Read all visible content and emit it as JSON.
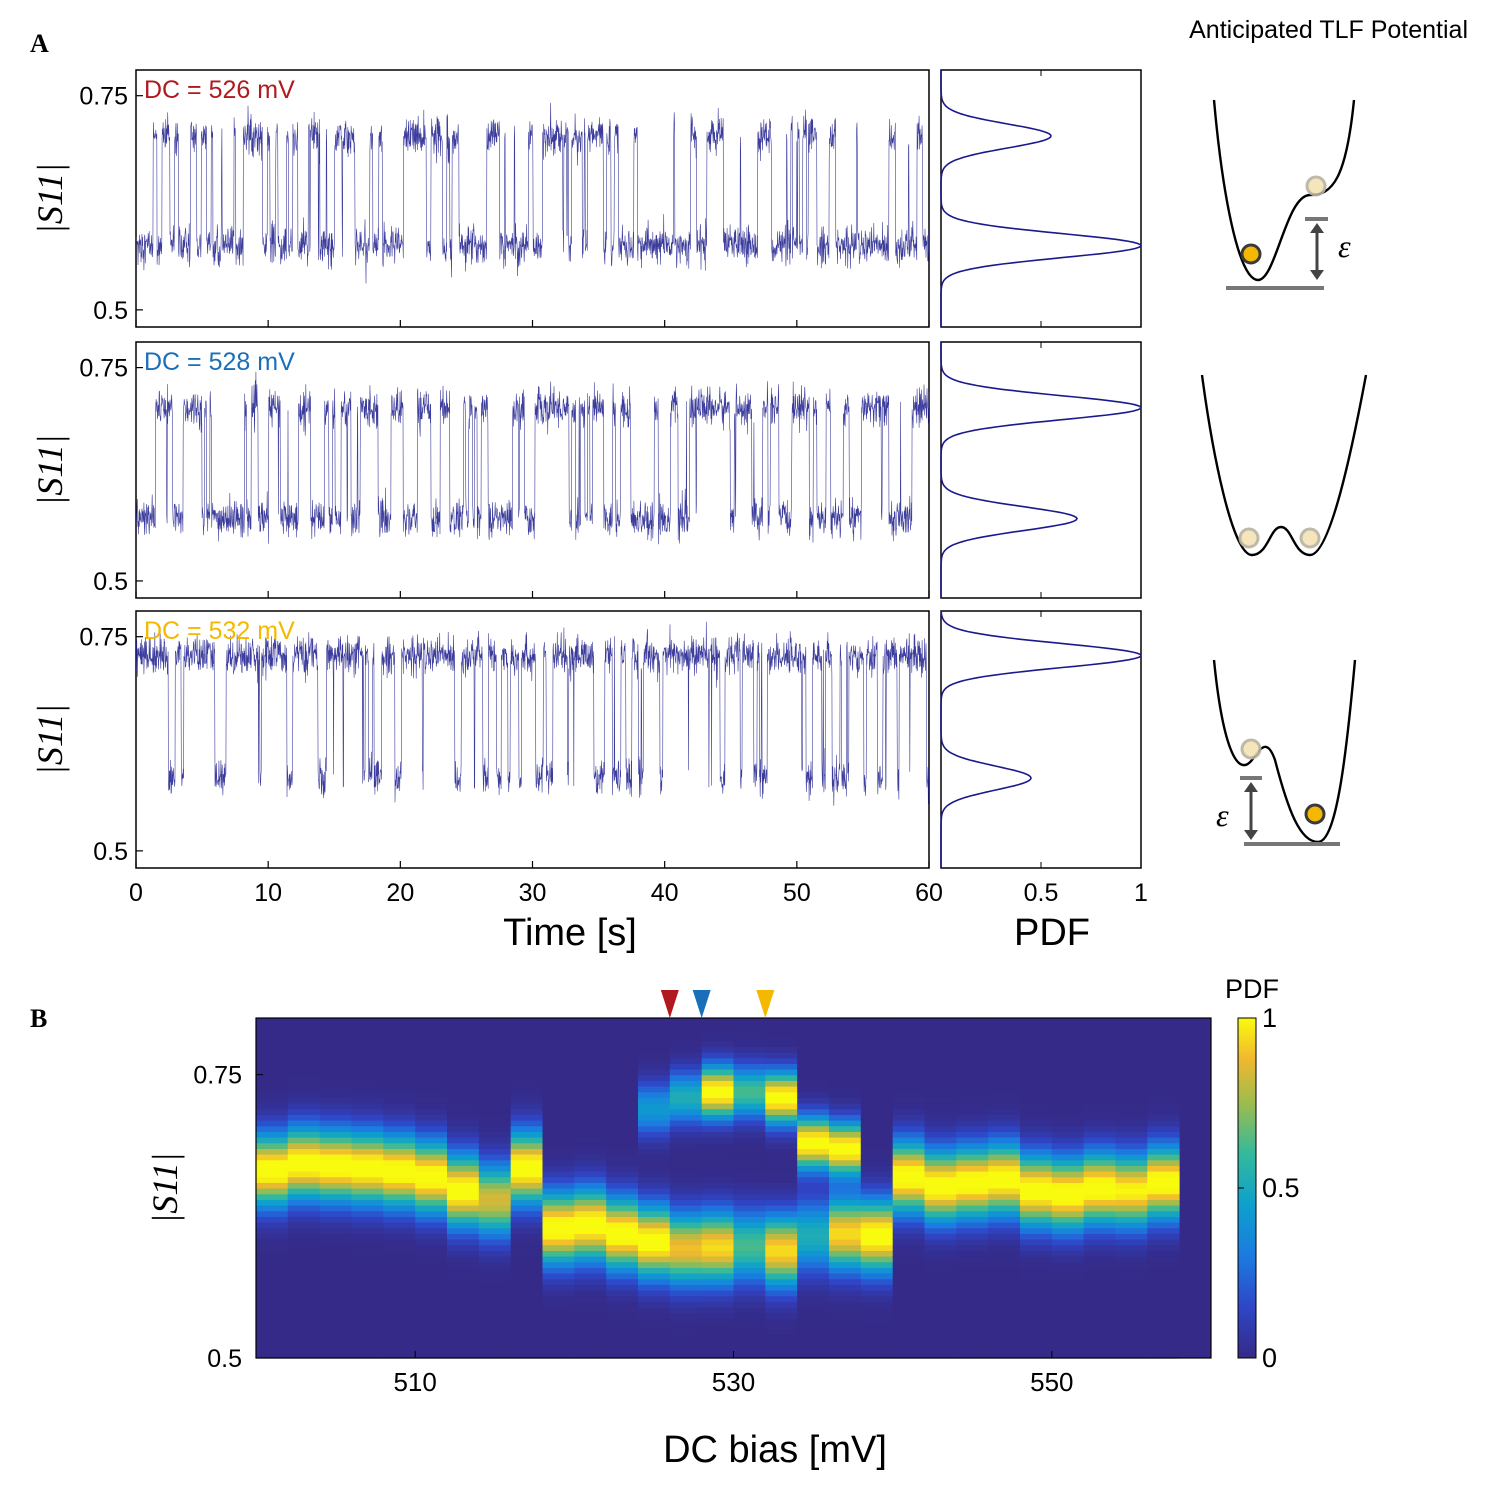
{
  "panel_a": {
    "label": "A",
    "potential_title": "Anticipated TLF Potential",
    "epsilon_symbol": "ε",
    "trace_ylabel": "|S11|",
    "time_xlabel": "Time [s]",
    "pdf_xlabel": "PDF",
    "traces": [
      {
        "label": "DC = 526 mV",
        "color": "#b0191e",
        "low_state": 0.575,
        "high_state": 0.703,
        "high_fraction": 0.35,
        "pdf_low_peak": 1.0,
        "pdf_high_peak": 0.55,
        "potential": "left-deeper"
      },
      {
        "label": "DC = 528 mV",
        "color": "#1a6fba",
        "low_state": 0.573,
        "high_state": 0.703,
        "high_fraction": 0.58,
        "pdf_low_peak": 0.68,
        "pdf_high_peak": 1.0,
        "potential": "symmetric"
      },
      {
        "label": "DC = 532 mV",
        "color": "#f5b800",
        "low_state": 0.585,
        "high_state": 0.728,
        "high_fraction": 0.7,
        "pdf_low_peak": 0.45,
        "pdf_high_peak": 1.0,
        "potential": "right-deeper"
      }
    ]
  },
  "panel_b": {
    "label": "B",
    "xlabel": "DC bias [mV]",
    "ylabel": "|S11|",
    "colorbar_title": "PDF",
    "markers": [
      {
        "x": 526,
        "color": "#b0191e"
      },
      {
        "x": 528,
        "color": "#1a6fba"
      },
      {
        "x": 532,
        "color": "#f5b800"
      }
    ]
  },
  "chart_data": [
    {
      "type": "line",
      "title": "DC = 526 mV",
      "xlabel": "Time [s]",
      "ylabel": "|S11|",
      "xlim": [
        0,
        60
      ],
      "ylim": [
        0.48,
        0.78
      ],
      "xticks": [
        0,
        10,
        20,
        30,
        40,
        50,
        60
      ],
      "xtick_labels": [
        "0",
        "10",
        "20",
        "30",
        "40",
        "50",
        "60"
      ],
      "yticks": [
        0.5,
        0.75
      ],
      "ytick_labels": [
        "0.5",
        "0.75"
      ],
      "series": [
        {
          "name": "|S11| telegraph noise",
          "states": [
            0.575,
            0.703
          ]
        }
      ]
    },
    {
      "type": "line",
      "title": "DC = 528 mV",
      "xlabel": "Time [s]",
      "ylabel": "|S11|",
      "xlim": [
        0,
        60
      ],
      "ylim": [
        0.48,
        0.78
      ],
      "yticks": [
        0.5,
        0.75
      ],
      "ytick_labels": [
        "0.5",
        "0.75"
      ],
      "series": [
        {
          "name": "|S11| telegraph noise",
          "states": [
            0.573,
            0.703
          ]
        }
      ]
    },
    {
      "type": "line",
      "title": "DC = 532 mV",
      "xlabel": "Time [s]",
      "ylabel": "|S11|",
      "xlim": [
        0,
        60
      ],
      "ylim": [
        0.48,
        0.78
      ],
      "yticks": [
        0.5,
        0.75
      ],
      "ytick_labels": [
        "0.5",
        "0.75"
      ],
      "series": [
        {
          "name": "|S11| telegraph noise",
          "states": [
            0.585,
            0.728
          ]
        }
      ]
    },
    {
      "type": "line",
      "xlabel": "PDF",
      "xlim": [
        0,
        1
      ],
      "xticks": [
        0,
        0.5,
        1
      ],
      "xtick_labels": [
        "0",
        "0.5",
        "1"
      ],
      "series": [
        {
          "name": "PDF 526 mV",
          "peaks": [
            {
              "s11": 0.575,
              "pdf": 1.0
            },
            {
              "s11": 0.703,
              "pdf": 0.55
            }
          ]
        },
        {
          "name": "PDF 528 mV",
          "peaks": [
            {
              "s11": 0.573,
              "pdf": 0.68
            },
            {
              "s11": 0.703,
              "pdf": 1.0
            }
          ]
        },
        {
          "name": "PDF 532 mV",
          "peaks": [
            {
              "s11": 0.585,
              "pdf": 0.45
            },
            {
              "s11": 0.728,
              "pdf": 1.0
            }
          ]
        }
      ]
    },
    {
      "type": "heatmap",
      "xlabel": "DC bias [mV]",
      "ylabel": "|S11|",
      "xlim": [
        500,
        560
      ],
      "ylim": [
        0.5,
        0.8
      ],
      "xticks": [
        510,
        530,
        550
      ],
      "xtick_labels": [
        "510",
        "530",
        "550"
      ],
      "yticks": [
        0.5,
        0.75
      ],
      "ytick_labels": [
        "0.5",
        "0.75"
      ],
      "colorbar": {
        "label": "PDF",
        "range": [
          0,
          1
        ],
        "ticks": [
          0,
          0.5,
          1
        ],
        "tick_labels": [
          "0",
          "0.5",
          "1"
        ]
      },
      "dc_bias": [
        501,
        503,
        505,
        507,
        509,
        511,
        513,
        515,
        517,
        519,
        521,
        523,
        525,
        527,
        529,
        531,
        533,
        535,
        537,
        539,
        541,
        543,
        545,
        547,
        549,
        551,
        553,
        555,
        557
      ],
      "peak_s11_low": [
        0.666,
        0.672,
        0.67,
        0.668,
        0.665,
        0.66,
        0.648,
        0.64,
        0.668,
        0.615,
        0.618,
        0.61,
        0.603,
        0.597,
        0.598,
        0.599,
        0.595,
        0.608,
        0.61,
        0.608,
        0.66,
        0.652,
        0.655,
        0.658,
        0.648,
        0.645,
        0.65,
        0.648,
        0.655
      ],
      "peak_s11_high": [
        null,
        null,
        null,
        null,
        null,
        null,
        null,
        null,
        null,
        null,
        null,
        null,
        0.72,
        0.73,
        0.735,
        0.735,
        0.73,
        0.69,
        0.685,
        null,
        null,
        null,
        null,
        null,
        null,
        null,
        null,
        null,
        null
      ],
      "weight_low": [
        1,
        1,
        1,
        1,
        1,
        1,
        1,
        0.8,
        1,
        1,
        1,
        1,
        1,
        0.85,
        0.9,
        0.6,
        0.9,
        0.5,
        0.9,
        1,
        1,
        1,
        1,
        1,
        1,
        1,
        1,
        0.95,
        1
      ],
      "weight_high": [
        0,
        0,
        0,
        0,
        0,
        0,
        0,
        0,
        0,
        0,
        0,
        0,
        0.4,
        0.5,
        1,
        0.6,
        1,
        1,
        1,
        0,
        0,
        0,
        0,
        0,
        0,
        0,
        0,
        0,
        0
      ]
    }
  ]
}
